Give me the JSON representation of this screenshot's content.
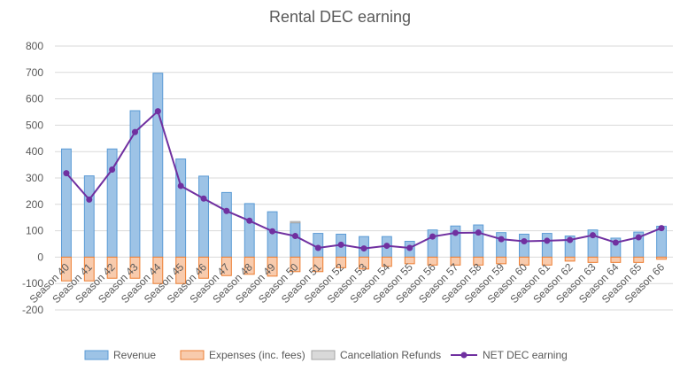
{
  "chart_data": {
    "type": "bar",
    "title": "Rental DEC earning",
    "categories": [
      "Season 40",
      "Season 41",
      "Season 42",
      "Season 43",
      "Season 44",
      "Season 45",
      "Season 46",
      "Season 47",
      "Season 48",
      "Season 49",
      "Season 50",
      "Season 51",
      "Season 52",
      "Season 53",
      "Season 54",
      "Season 55",
      "Season 56",
      "Season 57",
      "Season 58",
      "Season 59",
      "Season 60",
      "Season 61",
      "Season 62",
      "Season 63",
      "Season 64",
      "Season 65",
      "Season 66"
    ],
    "ylim": [
      -200,
      800
    ],
    "yticks": [
      -200,
      -100,
      0,
      100,
      200,
      300,
      400,
      500,
      600,
      700,
      800
    ],
    "grid": true,
    "legend_position": "bottom",
    "series": [
      {
        "name": "Revenue",
        "kind": "bar",
        "color": "#9DC3E6",
        "edge": "#5B9BD5",
        "values": [
          410,
          308,
          410,
          555,
          697,
          372,
          307,
          245,
          203,
          172,
          130,
          90,
          87,
          78,
          78,
          60,
          103,
          118,
          122,
          93,
          87,
          90,
          80,
          103,
          72,
          95,
          117
        ]
      },
      {
        "name": "Expenses (inc. fees)",
        "kind": "bar",
        "color": "#F8CBAD",
        "edge": "#ED7D31",
        "values": [
          -90,
          -90,
          -80,
          -80,
          -100,
          -100,
          -80,
          -70,
          -65,
          -72,
          -55,
          -55,
          -40,
          -45,
          -35,
          -25,
          -30,
          -30,
          -30,
          -25,
          -30,
          -30,
          -15,
          -20,
          -20,
          -20,
          -8
        ]
      },
      {
        "name": "Cancellation Refunds",
        "kind": "bar",
        "color": "#D9D9D9",
        "edge": "#A5A5A5",
        "values": [
          0,
          0,
          0,
          0,
          0,
          0,
          0,
          0,
          0,
          0,
          5,
          0,
          0,
          0,
          0,
          0,
          0,
          0,
          0,
          0,
          0,
          0,
          0,
          0,
          0,
          0,
          0
        ]
      },
      {
        "name": "NET DEC earning",
        "kind": "line",
        "color": "#7030A0",
        "values": [
          318,
          218,
          332,
          474,
          553,
          270,
          222,
          175,
          138,
          98,
          80,
          35,
          47,
          33,
          43,
          35,
          78,
          92,
          93,
          68,
          60,
          62,
          65,
          83,
          55,
          75,
          110
        ]
      }
    ]
  }
}
